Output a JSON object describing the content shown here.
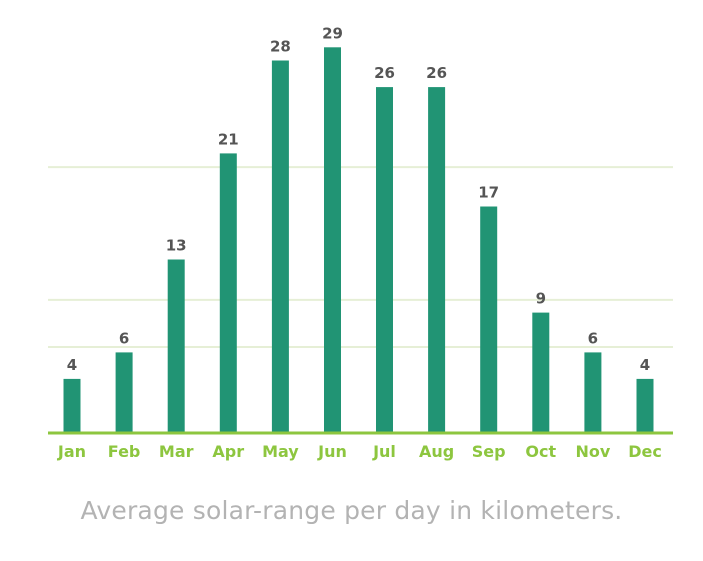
{
  "chart_data": {
    "type": "bar",
    "categories": [
      "Jan",
      "Feb",
      "Mar",
      "Apr",
      "May",
      "Jun",
      "Jul",
      "Aug",
      "Sep",
      "Oct",
      "Nov",
      "Dec"
    ],
    "values": [
      4,
      6,
      13,
      21,
      28,
      29,
      26,
      26,
      17,
      9,
      6,
      4
    ],
    "title": "",
    "caption": "Average solar-range per day in kilometers.",
    "xlabel": "",
    "ylabel": "",
    "ylim": [
      0,
      30
    ],
    "grid": true,
    "data_labels": true,
    "colors": {
      "bar": "#219474",
      "grid": "#e6efd6",
      "axis": "#8dc63f",
      "tick_label": "#8dc63f",
      "value_label": "#555555",
      "caption": "#b3b3b3"
    }
  }
}
